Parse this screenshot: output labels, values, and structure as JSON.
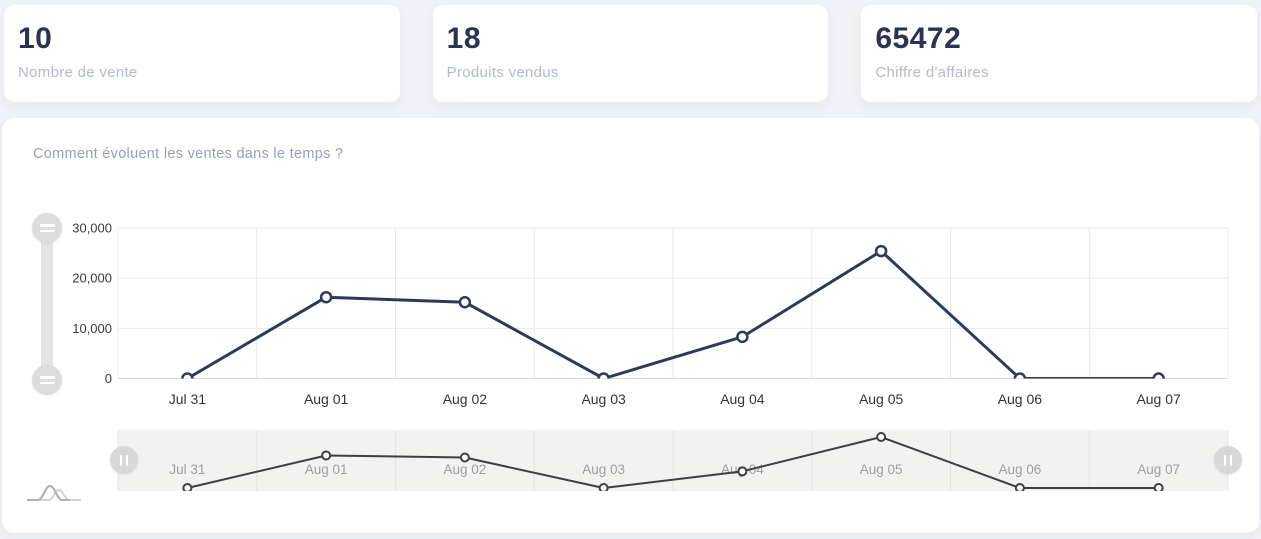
{
  "stat_cards": [
    {
      "value": "10",
      "label": "Nombre de vente"
    },
    {
      "value": "18",
      "label": "Produits vendus"
    },
    {
      "value": "65472",
      "label": "Chiffre d'affaires"
    }
  ],
  "chart_section": {
    "title": "Comment évoluent les ventes dans le temps ?"
  },
  "chart_data": {
    "type": "line",
    "title": "Comment évoluent les ventes dans le temps ?",
    "categories": [
      "Jul 31",
      "Aug 01",
      "Aug 02",
      "Aug 03",
      "Aug 04",
      "Aug 05",
      "Aug 06",
      "Aug 07"
    ],
    "values": [
      0,
      16200,
      15200,
      0,
      8300,
      25400,
      0,
      0
    ],
    "xlabel": "",
    "ylabel": "",
    "ylim": [
      0,
      30000
    ],
    "yticks": [
      0,
      10000,
      20000,
      30000
    ],
    "ytick_labels": [
      "0",
      "10,000",
      "20,000",
      "30,000"
    ],
    "grid": true,
    "legend_position": "none",
    "line_color": "#2e3a59",
    "marker_fill": "#ffffff",
    "navigator": {
      "present": true,
      "labels": [
        "Jul 31",
        "Aug 01",
        "Aug 02",
        "Aug 03",
        "Aug 04",
        "Aug 05",
        "Aug 06",
        "Aug 07"
      ],
      "line_color": "#3f3f3f",
      "selected_range": [
        "Jul 31",
        "Aug 07"
      ]
    }
  },
  "colors": {
    "page_background": "#eff2f7",
    "card_background": "#ffffff",
    "stat_value_text": "#2b3252",
    "stat_label_text": "#b3bac6",
    "chart_title_text": "#9aa0b3",
    "grid_line": "#e9e9e9",
    "axis_line": "#d7d7d7",
    "ytick_text": "#3a3a3a",
    "xtick_text": "#333333",
    "nav_background": "#f2f2f1",
    "nav_grid_line": "#e4e4e3",
    "nav_label_text": "#9e9e9e",
    "handle_fill": "#dcdcdc"
  },
  "icons": {
    "y_slider_handle": "grip-lines-icon",
    "nav_handle": "grip-vertical-icon",
    "corner": "area-chart-icon"
  }
}
